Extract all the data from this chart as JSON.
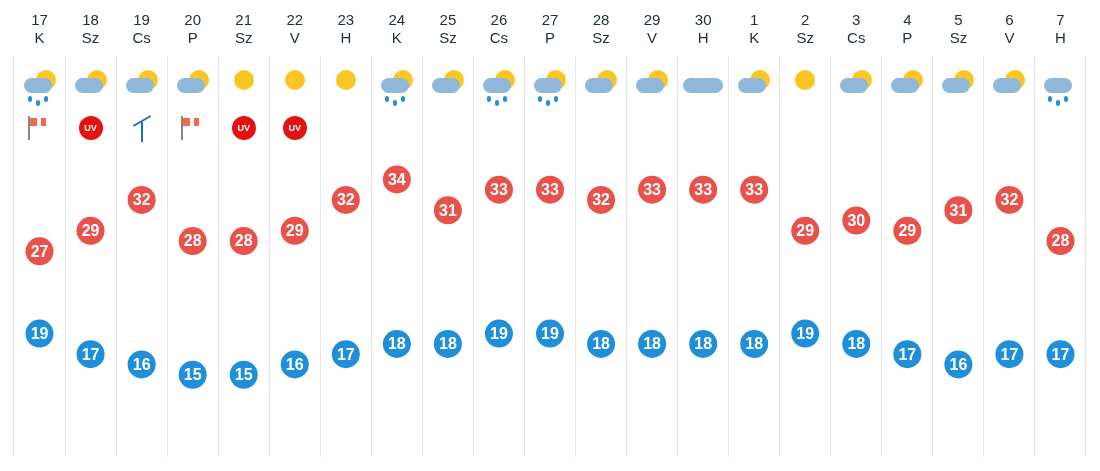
{
  "chart_data": {
    "type": "scatter",
    "categories": [
      "17\nK",
      "18\nSz",
      "19\nCs",
      "20\nP",
      "21\nSz",
      "22\nV",
      "23\nH",
      "24\nK",
      "25\nSz",
      "26\nCs",
      "27\nP",
      "28\nSz",
      "29\nV",
      "30\nH",
      "1\nK",
      "2\nSz",
      "3\nCs",
      "4\nP",
      "5\nSz",
      "6\nV",
      "7\nH"
    ],
    "series": [
      {
        "color": "#e8524a",
        "values": [
          27,
          29,
          32,
          28,
          28,
          29,
          32,
          34,
          31,
          33,
          33,
          32,
          33,
          33,
          33,
          29,
          30,
          29,
          31,
          32,
          28
        ]
      },
      {
        "color": "#1e8fd8",
        "values": [
          19,
          17,
          16,
          15,
          15,
          16,
          17,
          18,
          18,
          19,
          19,
          18,
          18,
          18,
          18,
          19,
          18,
          17,
          16,
          17,
          17
        ]
      }
    ],
    "annotations": [
      "UV",
      "UV",
      "UV"
    ],
    "data_labels": true,
    "marker": "circle",
    "grid": "x",
    "legend": false,
    "tick_labels": "x"
  }
}
